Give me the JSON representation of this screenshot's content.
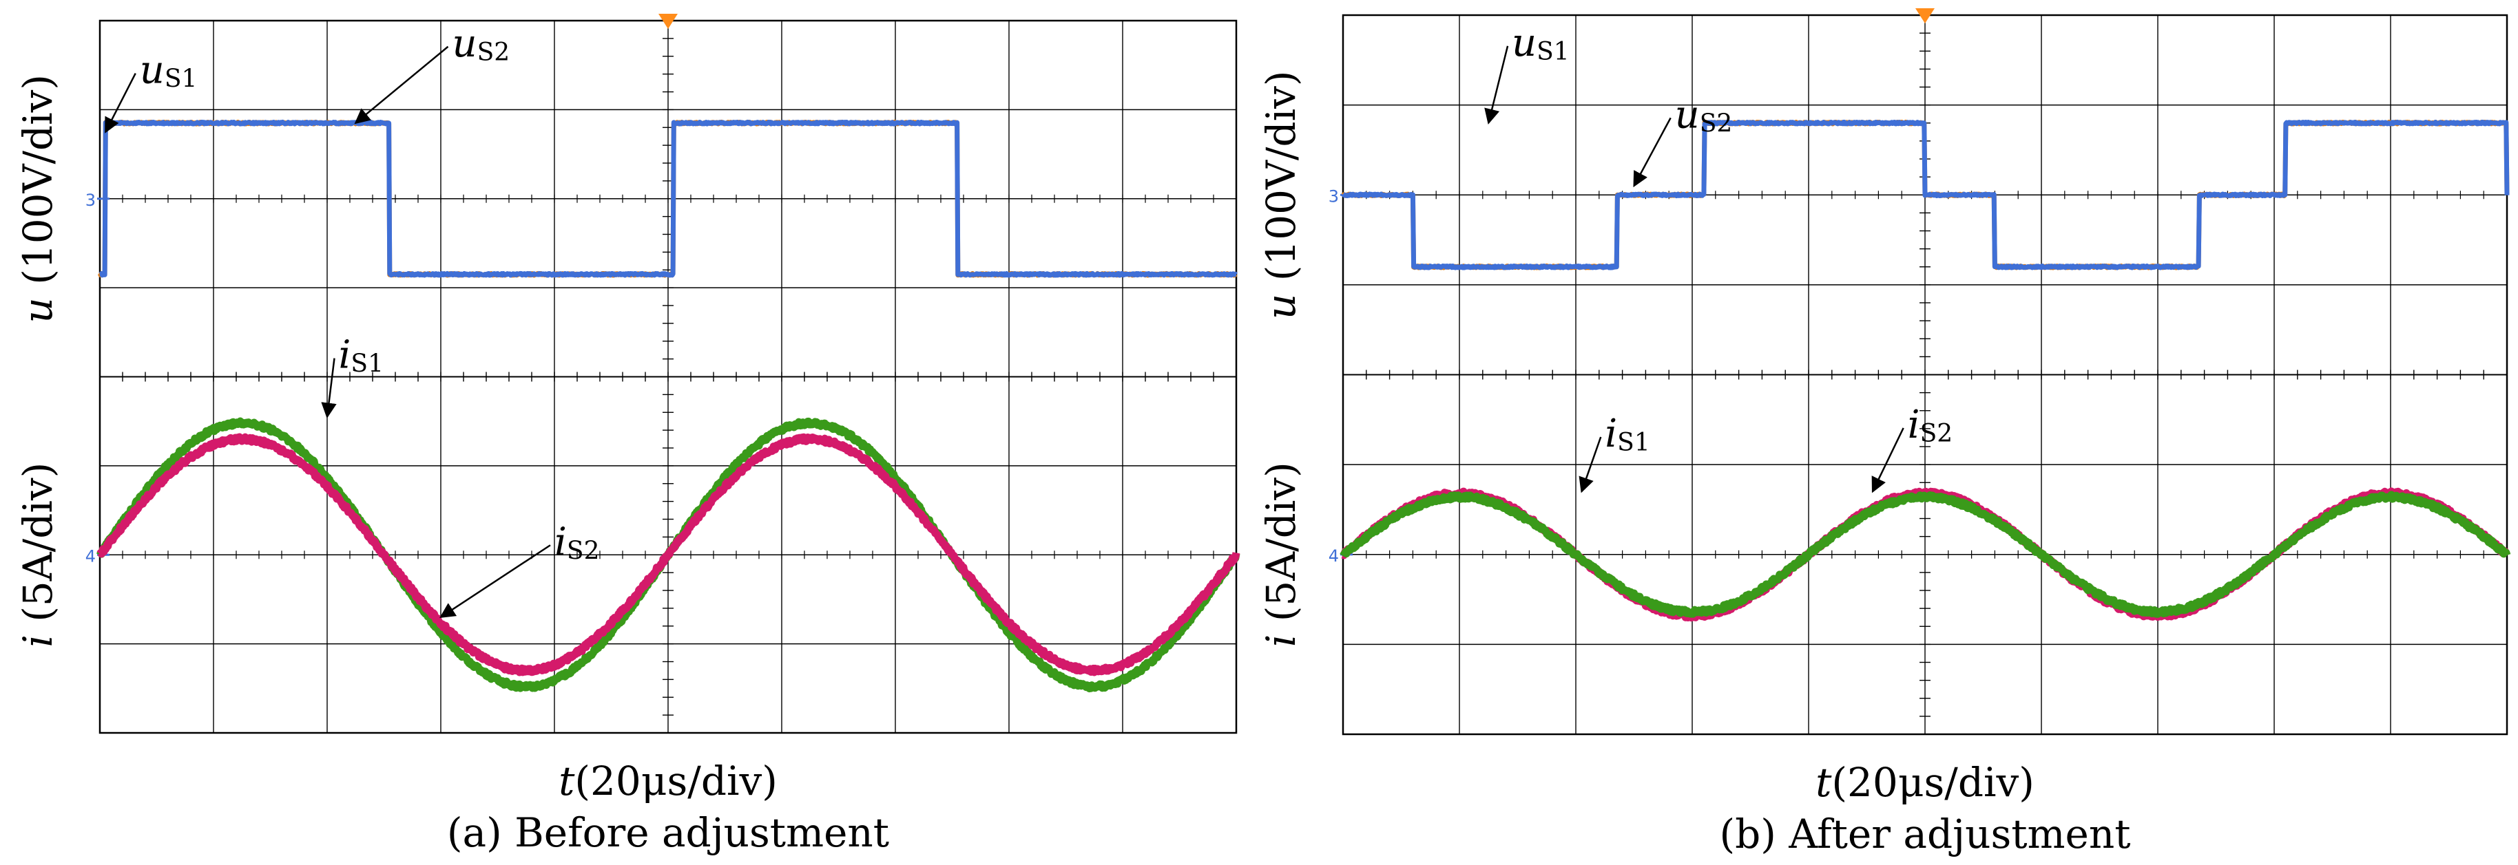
{
  "chart_data": [
    {
      "type": "line",
      "caption": "(a) Before adjustment",
      "xlabel": "t(20μs/div)",
      "xlabel_var": "t",
      "xlabel_unit": "(20μs/div)",
      "x_divisions": 10,
      "grid": true,
      "subplots": [
        {
          "ylabel": "u (100V/div)",
          "ylabel_var": "u",
          "ylabel_unit": " (100V/div)",
          "y_divisions": 4,
          "channel_marker": "3",
          "series": [
            {
              "name": "uS1",
              "label_main": "u",
              "label_sub": "S1",
              "color": "#e07b10",
              "shape": "square",
              "amplitude_div": 0.85,
              "period_div": 5.0,
              "phase_div": 0.05,
              "annot": {
                "label_x_div": 0.35,
                "label_y_div": 3.3,
                "tip_x_div": 0.05,
                "tip_y_div": 2.75
              }
            },
            {
              "name": "uS2",
              "label_main": "u",
              "label_sub": "S2",
              "color": "#3f6fd6",
              "shape": "square",
              "amplitude_div": 0.85,
              "period_div": 5.0,
              "phase_div": 0.05,
              "annot": {
                "label_x_div": 3.1,
                "label_y_div": 3.6,
                "tip_x_div": 2.25,
                "tip_y_div": 2.85
              }
            }
          ]
        },
        {
          "ylabel": "i (5A/div)",
          "ylabel_var": "i",
          "ylabel_unit": " (5A/div)",
          "y_divisions": 4,
          "channel_marker": "4",
          "series": [
            {
              "name": "iS1",
              "label_main": "i",
              "label_sub": "S1",
              "color": "#3a9a1a",
              "shape": "sine",
              "amplitude_div": 1.48,
              "period_div": 5.0,
              "phase_div": 0.0,
              "annot": {
                "label_x_div": 2.1,
                "label_y_div": 4.1,
                "tip_x_div": 2.0,
                "tip_y_div": 3.55
              }
            },
            {
              "name": "iS2",
              "label_main": "i",
              "label_sub": "S2",
              "color": "#d41a6a",
              "shape": "sine",
              "amplitude_div": 1.3,
              "period_div": 5.0,
              "phase_div": 0.0,
              "annot": {
                "label_x_div": 4.0,
                "label_y_div": 2.0,
                "tip_x_div": 3.0,
                "tip_y_div": 1.3
              }
            }
          ]
        }
      ]
    },
    {
      "type": "line",
      "caption": "(b) After adjustment",
      "xlabel": "t(20μs/div)",
      "xlabel_var": "t",
      "xlabel_unit": "(20μs/div)",
      "x_divisions": 10,
      "grid": true,
      "subplots": [
        {
          "ylabel": "u (100V/div)",
          "ylabel_var": "u",
          "ylabel_unit": " (100V/div)",
          "y_divisions": 4,
          "channel_marker": "3",
          "series": [
            {
              "name": "uS1",
              "label_main": "u",
              "label_sub": "S1",
              "color": "#e07b10",
              "shape": "square3",
              "amplitude_div": 0.8,
              "period_div": 5.0,
              "phase_div": 0.0,
              "annot": {
                "label_x_div": 1.45,
                "label_y_div": 3.55,
                "tip_x_div": 1.25,
                "tip_y_div": 2.8
              }
            },
            {
              "name": "uS2",
              "label_main": "u",
              "label_sub": "S2",
              "color": "#3f6fd6",
              "shape": "square3",
              "amplitude_div": 0.8,
              "period_div": 5.0,
              "phase_div": 0.0,
              "annot": {
                "label_x_div": 2.85,
                "label_y_div": 2.75,
                "tip_x_div": 2.5,
                "tip_y_div": 2.1
              }
            }
          ]
        },
        {
          "ylabel": "i (5A/div)",
          "ylabel_var": "i",
          "ylabel_unit": " (5A/div)",
          "y_divisions": 4,
          "channel_marker": "4",
          "series": [
            {
              "name": "iS1",
              "label_main": "i",
              "label_sub": "S1",
              "color": "#d41a6a",
              "shape": "sine",
              "amplitude_div": 0.68,
              "period_div": 4.0,
              "phase_div": 0.0,
              "annot": {
                "label_x_div": 2.25,
                "label_y_div": 3.2,
                "tip_x_div": 2.05,
                "tip_y_div": 2.7
              }
            },
            {
              "name": "iS2",
              "label_main": "i",
              "label_sub": "S2",
              "color": "#3a9a1a",
              "shape": "sine",
              "amplitude_div": 0.64,
              "period_div": 4.0,
              "phase_div": 0.0,
              "annot": {
                "label_x_div": 4.85,
                "label_y_div": 3.3,
                "tip_x_div": 4.55,
                "tip_y_div": 2.7
              }
            }
          ]
        }
      ]
    }
  ]
}
